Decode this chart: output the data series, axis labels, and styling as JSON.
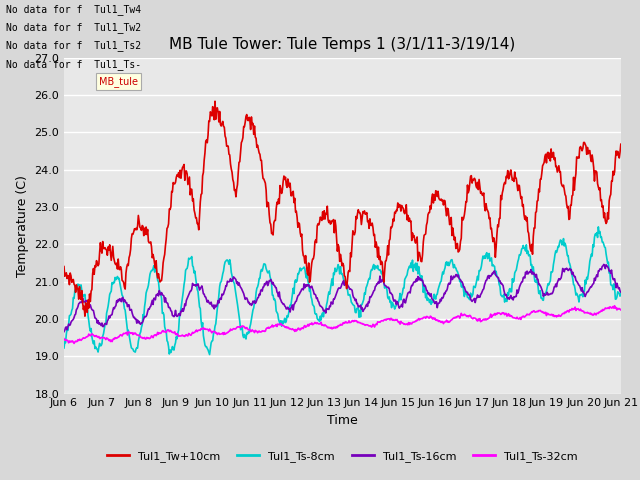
{
  "title": "MB Tule Tower: Tule Temps 1 (3/1/11-3/19/14)",
  "xlabel": "Time",
  "ylabel": "Temperature (C)",
  "ylim": [
    18.0,
    27.0
  ],
  "yticks": [
    18.0,
    19.0,
    20.0,
    21.0,
    22.0,
    23.0,
    24.0,
    25.0,
    26.0,
    27.0
  ],
  "xtick_labels": [
    "Jun 6",
    "Jun 7",
    "Jun 8",
    "Jun 9",
    "Jun 10",
    "Jun 11",
    "Jun 12",
    "Jun 13",
    "Jun 14",
    "Jun 15",
    "Jun 16",
    "Jun 17",
    "Jun 18",
    "Jun 19",
    "Jun 20",
    "Jun 21"
  ],
  "series": {
    "Tul1_Tw+10cm": {
      "color": "#dd0000",
      "lw": 1.2
    },
    "Tul1_Ts-8cm": {
      "color": "#00cccc",
      "lw": 1.2
    },
    "Tul1_Ts-16cm": {
      "color": "#7700bb",
      "lw": 1.2
    },
    "Tul1_Ts-32cm": {
      "color": "#ff00ff",
      "lw": 1.2
    }
  },
  "legend_labels": [
    "Tul1_Tw+10cm",
    "Tul1_Ts-8cm",
    "Tul1_Ts-16cm",
    "Tul1_Ts-32cm"
  ],
  "legend_colors": [
    "#dd0000",
    "#00cccc",
    "#7700bb",
    "#ff00ff"
  ],
  "no_data_texts": [
    "No data for f  Tul1_Tw4",
    "No data for f  Tul1_Tw2",
    "No data for f  Tul1_Ts2",
    "No data for f  Tul1_Ts-"
  ],
  "fig_bg_color": "#d8d8d8",
  "plot_bg_color": "#e8e8e8",
  "grid_color": "#ffffff",
  "title_fontsize": 11,
  "axis_fontsize": 9,
  "tick_fontsize": 8
}
